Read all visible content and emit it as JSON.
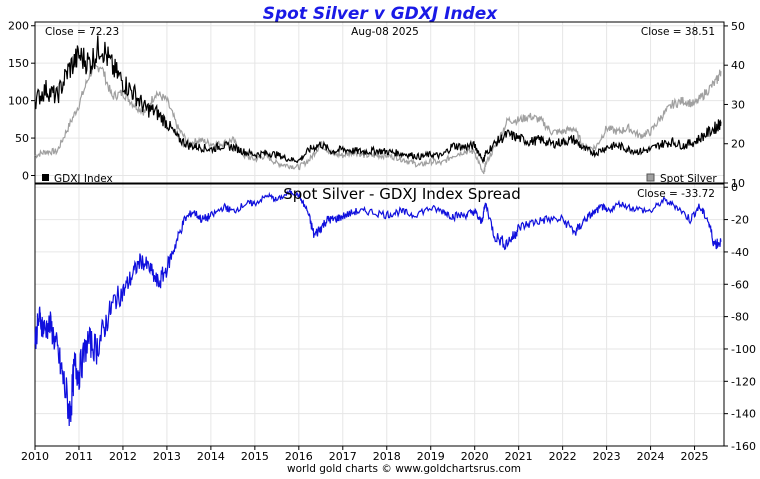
{
  "header": {
    "title": "Spot Silver v GDXJ Index",
    "footer": "world gold charts © www.goldchartsrus.com"
  },
  "colors": {
    "title": "#1a1ae6",
    "gdxj": "#000000",
    "silver": "#a0a0a0",
    "spread": "#1010dd",
    "grid": "#e6e6e6",
    "axis": "#000000"
  },
  "chart_data": [
    {
      "type": "line",
      "panel": "top",
      "date_label": "Aug-08  2025",
      "close_left": "Close = 72.23",
      "close_right": "Close = 38.51",
      "legend": "bottom-left and bottom-right",
      "grid": true,
      "x_ticks": [
        "2010",
        "2011",
        "2012",
        "2013",
        "2014",
        "2015",
        "2016",
        "2017",
        "2018",
        "2019",
        "2020",
        "2021",
        "2022",
        "2023",
        "2024",
        "2025"
      ],
      "xlim": [
        2010.0,
        2025.67
      ],
      "y_left_ticks": [
        0,
        50,
        100,
        150,
        200
      ],
      "y_left_lim": [
        -10,
        205
      ],
      "y_right_ticks": [
        10,
        20,
        30,
        40,
        50
      ],
      "y_right_lim": [
        10,
        51
      ],
      "series": [
        {
          "name": "GDXJ Index",
          "axis": "left",
          "x": [
            2010.0,
            2010.25,
            2010.5,
            2010.75,
            2011.0,
            2011.25,
            2011.5,
            2011.75,
            2012.0,
            2012.25,
            2012.5,
            2012.75,
            2013.0,
            2013.25,
            2013.5,
            2013.75,
            2014.0,
            2014.25,
            2014.5,
            2014.75,
            2015.0,
            2015.25,
            2015.5,
            2015.75,
            2016.0,
            2016.25,
            2016.5,
            2016.75,
            2017.0,
            2017.25,
            2017.5,
            2017.75,
            2018.0,
            2018.25,
            2018.5,
            2018.75,
            2019.0,
            2019.25,
            2019.5,
            2019.75,
            2020.0,
            2020.2,
            2020.25,
            2020.5,
            2020.75,
            2021.0,
            2021.25,
            2021.5,
            2021.75,
            2022.0,
            2022.25,
            2022.5,
            2022.75,
            2023.0,
            2023.25,
            2023.5,
            2023.75,
            2024.0,
            2024.25,
            2024.5,
            2024.75,
            2025.0,
            2025.25,
            2025.5,
            2025.6
          ],
          "y": [
            100,
            115,
            105,
            140,
            160,
            150,
            175,
            145,
            125,
            110,
            90,
            85,
            70,
            50,
            40,
            38,
            35,
            40,
            38,
            32,
            28,
            30,
            28,
            22,
            20,
            35,
            42,
            32,
            35,
            33,
            32,
            33,
            32,
            30,
            28,
            25,
            28,
            26,
            40,
            38,
            40,
            20,
            30,
            45,
            55,
            50,
            45,
            48,
            42,
            45,
            48,
            35,
            30,
            38,
            40,
            35,
            32,
            35,
            42,
            45,
            40,
            45,
            55,
            65,
            72
          ]
        },
        {
          "name": "Spot Silver",
          "axis": "right",
          "x": [
            2010.0,
            2010.25,
            2010.5,
            2010.75,
            2011.0,
            2011.25,
            2011.5,
            2011.75,
            2012.0,
            2012.25,
            2012.5,
            2012.75,
            2013.0,
            2013.25,
            2013.5,
            2013.75,
            2014.0,
            2014.25,
            2014.5,
            2014.75,
            2015.0,
            2015.25,
            2015.5,
            2015.75,
            2016.0,
            2016.25,
            2016.5,
            2016.75,
            2017.0,
            2017.25,
            2017.5,
            2017.75,
            2018.0,
            2018.25,
            2018.5,
            2018.75,
            2019.0,
            2019.25,
            2019.5,
            2019.75,
            2020.0,
            2020.2,
            2020.25,
            2020.5,
            2020.75,
            2021.0,
            2021.25,
            2021.5,
            2021.75,
            2022.0,
            2022.25,
            2022.5,
            2022.75,
            2023.0,
            2023.25,
            2023.5,
            2023.75,
            2024.0,
            2024.25,
            2024.5,
            2024.75,
            2025.0,
            2025.25,
            2025.5,
            2025.6
          ],
          "y": [
            17,
            18,
            18,
            24,
            30,
            38,
            40,
            32,
            33,
            30,
            28,
            33,
            31,
            24,
            20,
            21,
            20,
            20,
            21,
            17,
            16,
            17,
            15,
            14.5,
            14,
            16,
            20,
            17.5,
            17,
            18,
            17,
            17,
            17,
            16.5,
            15.5,
            14.5,
            15.5,
            15,
            17,
            18,
            18,
            12,
            15,
            20,
            26,
            26,
            27,
            26,
            23,
            23,
            24,
            19,
            19,
            24,
            23,
            24,
            22,
            23,
            27,
            30,
            31,
            30,
            33,
            36,
            38.5
          ]
        }
      ]
    },
    {
      "type": "line",
      "panel": "bottom",
      "title": "Spot Silver  -  GDXJ Index Spread",
      "close_right": "Close = -33.72",
      "grid": true,
      "x_ticks": [
        "2010",
        "2011",
        "2012",
        "2013",
        "2014",
        "2015",
        "2016",
        "2017",
        "2018",
        "2019",
        "2020",
        "2021",
        "2022",
        "2023",
        "2024",
        "2025"
      ],
      "xlim": [
        2010.0,
        2025.67
      ],
      "y_right_ticks": [
        0,
        -20,
        -40,
        -60,
        -80,
        -100,
        -120,
        -140,
        -160
      ],
      "y_right_lim": [
        -160,
        2
      ],
      "series": [
        {
          "name": "Spread",
          "x": [
            2010.0,
            2010.1,
            2010.2,
            2010.35,
            2010.5,
            2010.65,
            2010.8,
            2010.9,
            2011.0,
            2011.2,
            2011.4,
            2011.6,
            2011.8,
            2012.0,
            2012.2,
            2012.4,
            2012.6,
            2012.8,
            2013.0,
            2013.2,
            2013.4,
            2013.6,
            2013.8,
            2014.0,
            2014.3,
            2014.5,
            2014.8,
            2015.0,
            2015.3,
            2015.5,
            2015.8,
            2016.0,
            2016.2,
            2016.35,
            2016.5,
            2016.65,
            2016.8,
            2017.0,
            2017.3,
            2017.6,
            2018.0,
            2018.3,
            2018.6,
            2019.0,
            2019.3,
            2019.5,
            2019.8,
            2020.0,
            2020.15,
            2020.25,
            2020.45,
            2020.7,
            2020.9,
            2021.0,
            2021.3,
            2021.6,
            2022.0,
            2022.3,
            2022.5,
            2022.7,
            2022.9,
            2023.0,
            2023.3,
            2023.6,
            2024.0,
            2024.3,
            2024.6,
            2024.9,
            2025.1,
            2025.3,
            2025.45,
            2025.6
          ],
          "y": [
            -95,
            -80,
            -88,
            -85,
            -100,
            -120,
            -140,
            -110,
            -115,
            -95,
            -100,
            -85,
            -70,
            -65,
            -55,
            -45,
            -50,
            -60,
            -50,
            -35,
            -20,
            -15,
            -20,
            -18,
            -12,
            -15,
            -10,
            -10,
            -5,
            -8,
            -3,
            -5,
            -15,
            -30,
            -25,
            -20,
            -20,
            -18,
            -15,
            -15,
            -17,
            -15,
            -17,
            -13,
            -15,
            -18,
            -17,
            -15,
            -22,
            -10,
            -30,
            -35,
            -30,
            -25,
            -22,
            -20,
            -20,
            -28,
            -20,
            -16,
            -12,
            -15,
            -10,
            -13,
            -15,
            -8,
            -12,
            -20,
            -12,
            -20,
            -35,
            -33.72
          ]
        }
      ]
    }
  ]
}
